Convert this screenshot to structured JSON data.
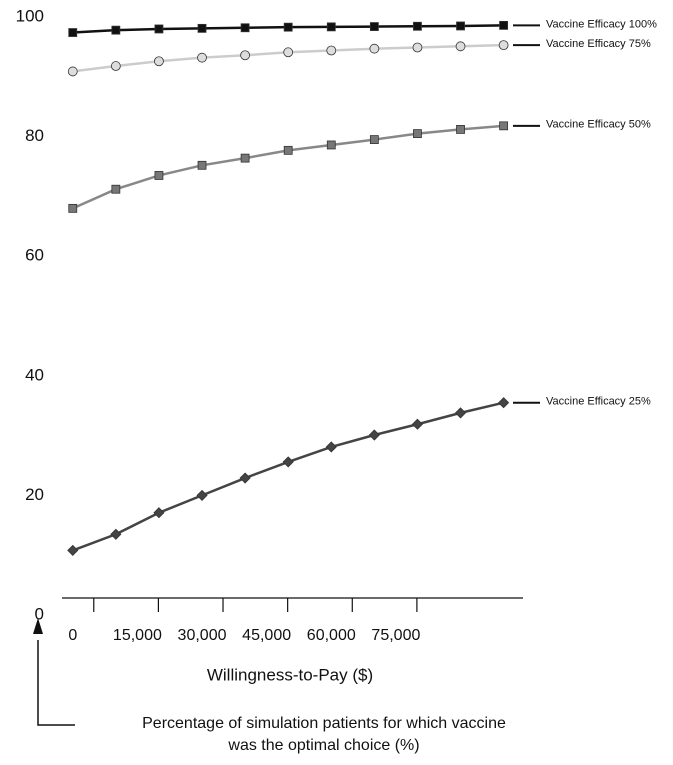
{
  "chart_data": {
    "type": "line",
    "xlabel": "Willingness-to-Pay ($)",
    "annotation": [
      "Percentage of simulation patients for which vaccine",
      "was the optimal choice (%)"
    ],
    "x": [
      0,
      10000,
      20000,
      30000,
      40000,
      50000,
      60000,
      70000,
      80000,
      90000,
      100000
    ],
    "xlim": [
      -2500,
      104500
    ],
    "xticks": [
      0,
      {
        "value": 15000,
        "label": "15,000"
      },
      {
        "value": 30000,
        "label": "30,000"
      },
      {
        "value": 45000,
        "label": "45,000"
      },
      {
        "value": 60000,
        "label": "60,000"
      },
      {
        "value": 75000,
        "label": "75,000"
      }
    ],
    "ylim": [
      0,
      100
    ],
    "yticks": [
      0,
      20,
      40,
      60,
      80,
      100
    ],
    "series": [
      {
        "name": "Vaccine Efficacy 100%",
        "color": "#111111",
        "marker": "square",
        "values": [
          97.4,
          97.8,
          98.0,
          98.1,
          98.2,
          98.3,
          98.35,
          98.4,
          98.45,
          98.5,
          98.6
        ]
      },
      {
        "name": "Vaccine Efficacy 75%",
        "color": "#cccccc",
        "marker": "circle",
        "values": [
          90.9,
          91.8,
          92.6,
          93.2,
          93.6,
          94.1,
          94.4,
          94.7,
          94.9,
          95.1,
          95.3
        ]
      },
      {
        "name": "Vaccine Efficacy 50%",
        "color": "#888888",
        "marker": "square",
        "values": [
          68.0,
          71.2,
          73.5,
          75.2,
          76.4,
          77.7,
          78.6,
          79.5,
          80.5,
          81.2,
          81.8
        ]
      },
      {
        "name": "Vaccine Efficacy 25%",
        "color": "#444444",
        "marker": "diamond",
        "values": [
          10.8,
          13.5,
          17.1,
          20.0,
          22.9,
          25.6,
          28.1,
          30.1,
          31.9,
          33.8,
          35.5
        ]
      }
    ]
  }
}
